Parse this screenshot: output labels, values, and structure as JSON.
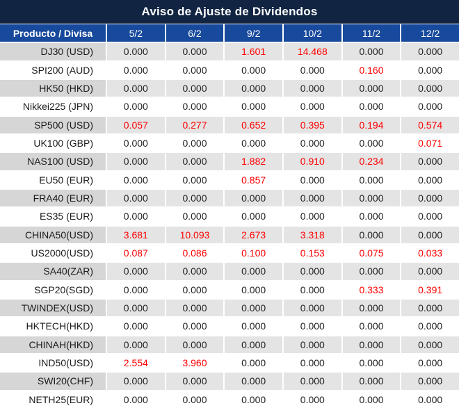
{
  "chart_data": {
    "type": "table",
    "title": "Aviso de Ajuste de Dividendos",
    "columns": [
      "Producto / Divisa",
      "5/2",
      "6/2",
      "9/2",
      "10/2",
      "11/2",
      "12/2"
    ],
    "rows": [
      {
        "product": "DJ30 (USD)",
        "values": [
          "0.000",
          "0.000",
          "1.601",
          "14.468",
          "0.000",
          "0.000"
        ]
      },
      {
        "product": "SPI200 (AUD)",
        "values": [
          "0.000",
          "0.000",
          "0.000",
          "0.000",
          "0.160",
          "0.000"
        ]
      },
      {
        "product": "HK50 (HKD)",
        "values": [
          "0.000",
          "0.000",
          "0.000",
          "0.000",
          "0.000",
          "0.000"
        ]
      },
      {
        "product": "Nikkei225 (JPN)",
        "values": [
          "0.000",
          "0.000",
          "0.000",
          "0.000",
          "0.000",
          "0.000"
        ]
      },
      {
        "product": "SP500 (USD)",
        "values": [
          "0.057",
          "0.277",
          "0.652",
          "0.395",
          "0.194",
          "0.574"
        ]
      },
      {
        "product": "UK100 (GBP)",
        "values": [
          "0.000",
          "0.000",
          "0.000",
          "0.000",
          "0.000",
          "0.071"
        ]
      },
      {
        "product": "NAS100 (USD)",
        "values": [
          "0.000",
          "0.000",
          "1.882",
          "0.910",
          "0.234",
          "0.000"
        ]
      },
      {
        "product": "EU50 (EUR)",
        "values": [
          "0.000",
          "0.000",
          "0.857",
          "0.000",
          "0.000",
          "0.000"
        ]
      },
      {
        "product": "FRA40 (EUR)",
        "values": [
          "0.000",
          "0.000",
          "0.000",
          "0.000",
          "0.000",
          "0.000"
        ]
      },
      {
        "product": "ES35 (EUR)",
        "values": [
          "0.000",
          "0.000",
          "0.000",
          "0.000",
          "0.000",
          "0.000"
        ]
      },
      {
        "product": "CHINA50(USD)",
        "values": [
          "3.681",
          "10.093",
          "2.673",
          "3.318",
          "0.000",
          "0.000"
        ]
      },
      {
        "product": "US2000(USD)",
        "values": [
          "0.087",
          "0.086",
          "0.100",
          "0.153",
          "0.075",
          "0.033"
        ]
      },
      {
        "product": "SA40(ZAR)",
        "values": [
          "0.000",
          "0.000",
          "0.000",
          "0.000",
          "0.000",
          "0.000"
        ]
      },
      {
        "product": "SGP20(SGD)",
        "values": [
          "0.000",
          "0.000",
          "0.000",
          "0.000",
          "0.333",
          "0.391"
        ]
      },
      {
        "product": "TWINDEX(USD)",
        "values": [
          "0.000",
          "0.000",
          "0.000",
          "0.000",
          "0.000",
          "0.000"
        ]
      },
      {
        "product": "HKTECH(HKD)",
        "values": [
          "0.000",
          "0.000",
          "0.000",
          "0.000",
          "0.000",
          "0.000"
        ]
      },
      {
        "product": "CHINAH(HKD)",
        "values": [
          "0.000",
          "0.000",
          "0.000",
          "0.000",
          "0.000",
          "0.000"
        ]
      },
      {
        "product": "IND50(USD)",
        "values": [
          "2.554",
          "3.960",
          "0.000",
          "0.000",
          "0.000",
          "0.000"
        ]
      },
      {
        "product": "SWI20(CHF)",
        "values": [
          "0.000",
          "0.000",
          "0.000",
          "0.000",
          "0.000",
          "0.000"
        ]
      },
      {
        "product": "NETH25(EUR)",
        "values": [
          "0.000",
          "0.000",
          "0.000",
          "0.000",
          "0.000",
          "0.000"
        ]
      }
    ],
    "highlight_rule": "non-zero adjustment values rendered in red",
    "layout": "zebra striping: rows 1,3,5,... shaded gray; product column shaded darker on striped rows"
  },
  "colors": {
    "title_bg": "#112442",
    "header_bg": "#17499c",
    "header_text": "#ffffff",
    "row_shade_product": "#d6d6d6",
    "row_shade_data": "#e4e4e4",
    "row_plain": "#ffffff",
    "value_text": "#222222",
    "highlight": "#fe0000",
    "separator": "#ffffff"
  }
}
